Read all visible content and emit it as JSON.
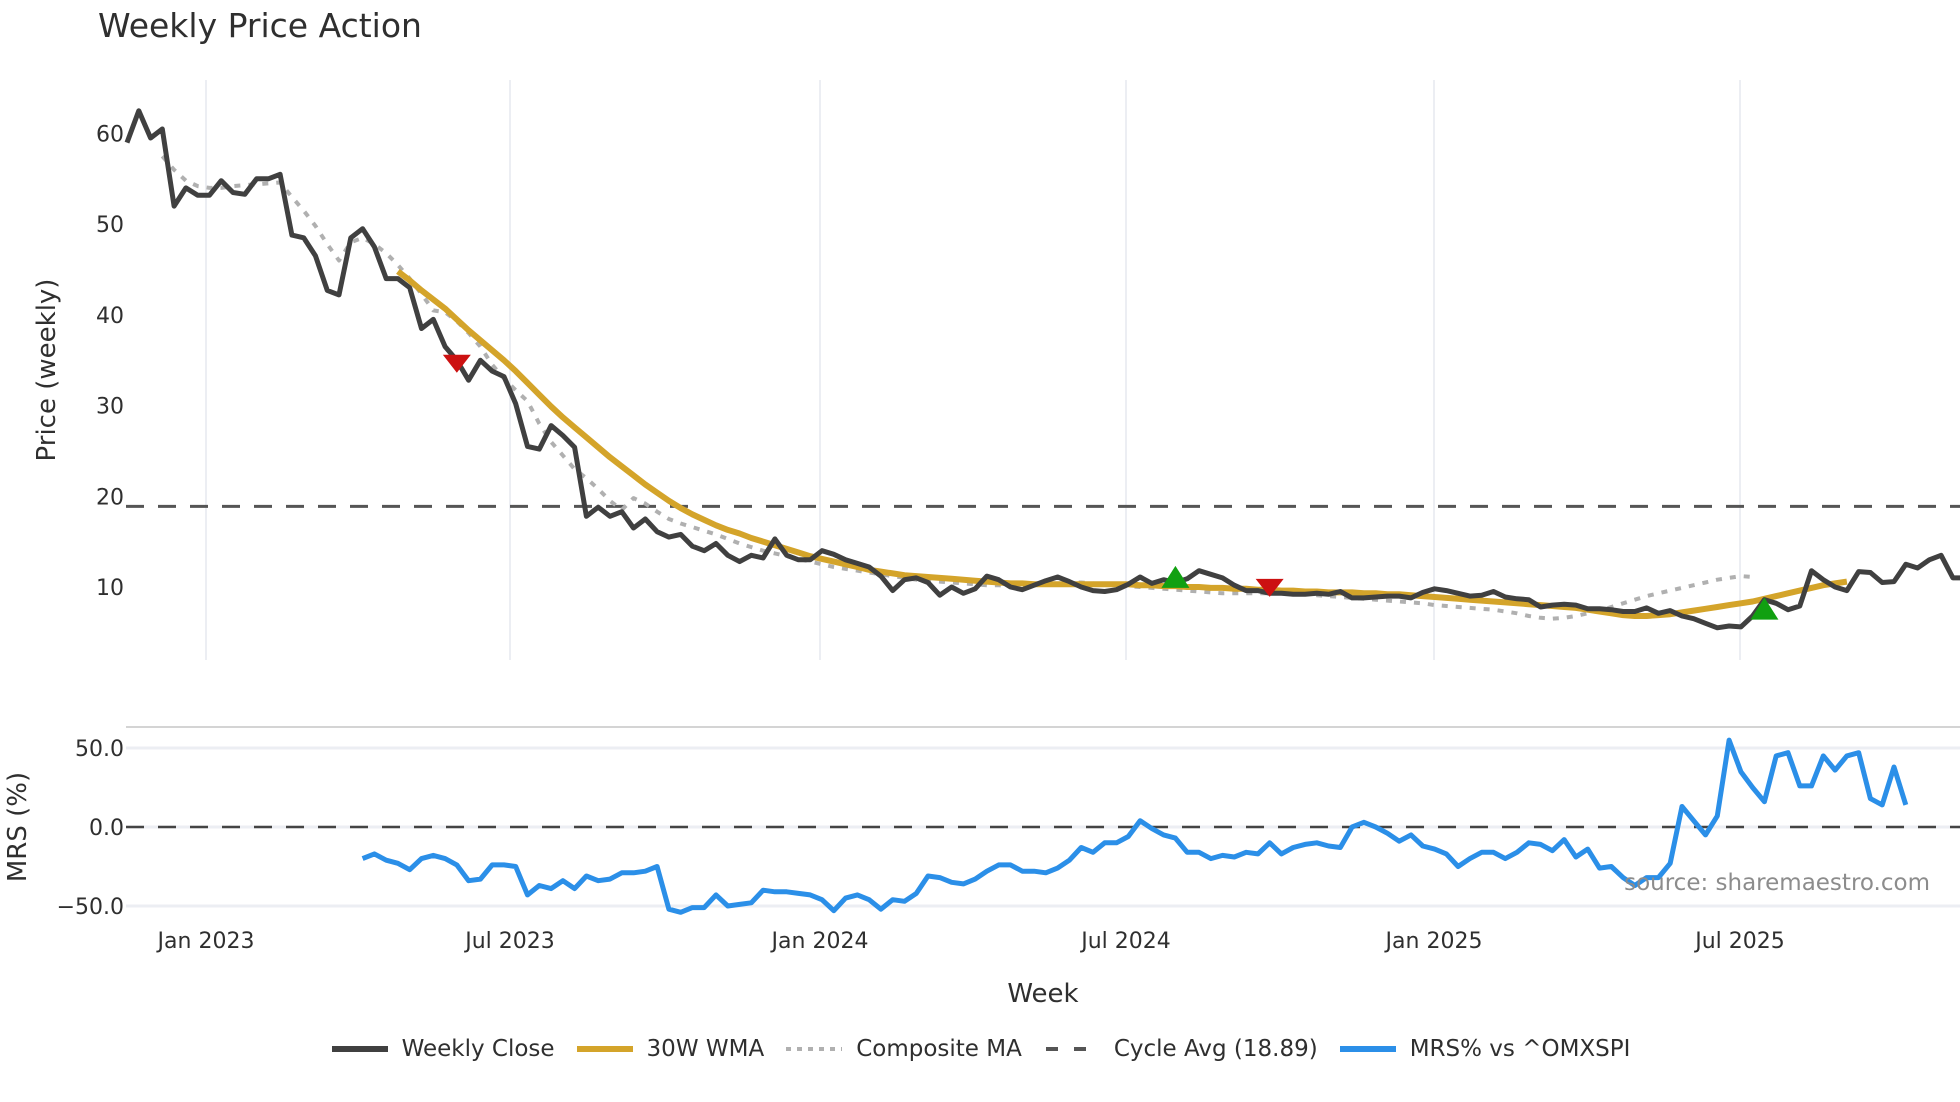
{
  "title": "Weekly Price Action",
  "watermark": "source: sharemaestro.com",
  "chart_data": [
    {
      "type": "line",
      "title": "Weekly Price Action",
      "xlabel": "Week",
      "ylabel": "Price (weekly)",
      "ylim": [
        0,
        64
      ],
      "yticks": [
        10,
        20,
        30,
        40,
        50,
        60
      ],
      "xticks": [
        "Jan 2023",
        "Jul 2023",
        "Jan 2024",
        "Jul 2024",
        "Jan 2025",
        "Jul 2025"
      ],
      "x_start_week": "2022-11-14",
      "grid": true,
      "series": [
        {
          "name": "Weekly Close",
          "color": "#404040",
          "values": [
            59,
            62.5,
            59.5,
            60.5,
            52,
            54,
            53.2,
            53.2,
            54.8,
            53.5,
            53.3,
            55,
            55,
            55.5,
            48.8,
            48.5,
            46.5,
            42.7,
            42.2,
            48.5,
            49.5,
            47.5,
            44,
            44,
            43,
            38.5,
            39.5,
            36.5,
            35,
            32.8,
            35,
            33.8,
            33.2,
            30.2,
            25.5,
            25.2,
            27.8,
            26.7,
            25.4,
            17.8,
            18.8,
            17.8,
            18.3,
            16.5,
            17.5,
            16.1,
            15.5,
            15.8,
            14.5,
            14,
            14.8,
            13.5,
            12.8,
            13.5,
            13.2,
            15.3,
            13.5,
            13,
            13,
            14,
            13.6,
            13,
            12.6,
            12.2,
            11.2,
            9.6,
            10.8,
            11,
            10.5,
            9.1,
            10,
            9.3,
            9.8,
            11.2,
            10.8,
            10,
            9.7,
            10.2,
            10.7,
            11.1,
            10.6,
            10,
            9.6,
            9.5,
            9.7,
            10.3,
            11.1,
            10.4,
            10.8,
            10.5,
            10.9,
            11.8,
            11.4,
            11,
            10.2,
            9.6,
            9.6,
            9.3,
            9.3,
            9.2,
            9.2,
            9.3,
            9.2,
            9.5,
            8.8,
            8.8,
            8.9,
            9,
            9,
            8.8,
            9.4,
            9.8,
            9.6,
            9.3,
            9,
            9.1,
            9.5,
            8.9,
            8.7,
            8.6,
            7.8,
            8,
            8.1,
            8,
            7.6,
            7.6,
            7.5,
            7.3,
            7.3,
            7.7,
            7.1,
            7.4,
            6.8,
            6.5,
            6,
            5.5,
            5.7,
            5.6,
            6.8,
            8.6,
            8.2,
            7.5,
            7.9,
            11.8,
            10.8,
            10,
            9.6,
            11.7,
            11.6,
            10.5,
            10.6,
            12.5,
            12.1,
            13,
            13.5,
            11,
            11,
            13.2,
            11
          ]
        },
        {
          "name": "30W WMA",
          "color": "#d4a42a",
          "start_index": 23,
          "values": [
            44.8,
            43.8,
            42.7,
            41.7,
            40.7,
            39.5,
            38.3,
            37.2,
            36.1,
            35,
            33.8,
            32.5,
            31.2,
            29.9,
            28.7,
            27.6,
            26.5,
            25.4,
            24.3,
            23.3,
            22.3,
            21.3,
            20.4,
            19.5,
            18.7,
            18,
            17.4,
            16.8,
            16.3,
            15.9,
            15.4,
            15,
            14.6,
            14.2,
            13.8,
            13.4,
            13.1,
            12.8,
            12.5,
            12.2,
            11.9,
            11.7,
            11.5,
            11.3,
            11.2,
            11.1,
            11,
            10.9,
            10.8,
            10.7,
            10.6,
            10.5,
            10.4,
            10.4,
            10.3,
            10.3,
            10.3,
            10.3,
            10.3,
            10.3,
            10.3,
            10.3,
            10.3,
            10.2,
            10.2,
            10.1,
            10.1,
            10,
            10,
            9.9,
            9.9,
            9.8,
            9.8,
            9.7,
            9.7,
            9.6,
            9.6,
            9.5,
            9.5,
            9.4,
            9.4,
            9.4,
            9.3,
            9.3,
            9.2,
            9.2,
            9.1,
            9,
            8.9,
            8.8,
            8.7,
            8.6,
            8.5,
            8.4,
            8.3,
            8.2,
            8.1,
            8,
            7.9,
            7.8,
            7.7,
            7.5,
            7.3,
            7.1,
            6.9,
            6.8,
            6.8,
            6.9,
            7,
            7.2,
            7.4,
            7.6,
            7.8,
            8,
            8.2,
            8.4,
            8.7,
            9,
            9.3,
            9.6,
            9.9,
            10.2,
            10.4,
            10.6
          ]
        },
        {
          "name": "Composite MA",
          "color": "#b0b0b0",
          "start_index": 3,
          "values": [
            57.5,
            56,
            54.8,
            54.2,
            54,
            54,
            54.2,
            54.3,
            54.4,
            54.5,
            54.6,
            53,
            51.5,
            49.8,
            47.8,
            46,
            48,
            48.5,
            47.8,
            46.8,
            45.5,
            44,
            42.3,
            40.5,
            40.3,
            39.3,
            38,
            36.5,
            34.5,
            33,
            31.7,
            30.5,
            28,
            26,
            24.5,
            23,
            22,
            20.8,
            19.5,
            18.5,
            19.8,
            19.2,
            18.3,
            17.5,
            17,
            16.6,
            16.2,
            15.8,
            15.3,
            14.8,
            14.4,
            14,
            13.7,
            13.4,
            13.1,
            12.8,
            12.5,
            12.2,
            12,
            11.8,
            11.6,
            11.4,
            11.2,
            11,
            10.8,
            10.7,
            10.6,
            10.5,
            10.4,
            10.3,
            10.2,
            10.2,
            10.1,
            10.1,
            10.2,
            10.3,
            10.4,
            10.5,
            10.5,
            10.4,
            10.3,
            10.2,
            10.1,
            10,
            9.9,
            9.8,
            9.7,
            9.6,
            9.5,
            9.4,
            9.3,
            9.3,
            9.3,
            9.3,
            9.3,
            9.3,
            9.2,
            9.2,
            9.1,
            9,
            8.9,
            8.8,
            8.7,
            8.6,
            8.5,
            8.4,
            8.3,
            8.2,
            8,
            7.9,
            7.8,
            7.7,
            7.6,
            7.5,
            7.3,
            7.1,
            6.8,
            6.6,
            6.5,
            6.6,
            6.8,
            7.1,
            7.4,
            7.8,
            8.2,
            8.6,
            9,
            9.3,
            9.6,
            9.9,
            10.2,
            10.5,
            10.8,
            11,
            11.2,
            11.1
          ]
        },
        {
          "name": "Cycle Avg (18.89)",
          "color": "#555555",
          "constant": 18.89
        }
      ],
      "markers": [
        {
          "type": "sell",
          "shape": "triangle-down",
          "color": "#cc1111",
          "index": 28,
          "value": 34.5
        },
        {
          "type": "buy",
          "shape": "triangle-up",
          "color": "#11a011",
          "index": 89,
          "value": 11.0
        },
        {
          "type": "sell",
          "shape": "triangle-down",
          "color": "#cc1111",
          "index": 97,
          "value": 9.8
        },
        {
          "type": "buy",
          "shape": "triangle-up",
          "color": "#11a011",
          "index": 139,
          "value": 7.5
        }
      ]
    },
    {
      "type": "line",
      "ylabel": "MRS (%)",
      "ylim": [
        -55,
        65
      ],
      "yticks": [
        -50.0,
        0.0,
        50.0
      ],
      "zero_line": true,
      "series": [
        {
          "name": "MRS% vs ^OMXSPI",
          "color": "#2b8fe8",
          "start_index": 20,
          "values": [
            -20,
            -17,
            -21,
            -23,
            -27,
            -20,
            -18,
            -20,
            -24,
            -34,
            -33,
            -24,
            -24,
            -25,
            -43,
            -37,
            -39,
            -34,
            -39,
            -31,
            -34,
            -33,
            -29,
            -29,
            -28,
            -25,
            -52,
            -54,
            -51,
            -51,
            -43,
            -50,
            -49,
            -48,
            -40,
            -41,
            -41,
            -42,
            -43,
            -46,
            -53,
            -45,
            -43,
            -46,
            -52,
            -46,
            -47,
            -42,
            -31,
            -32,
            -35,
            -36,
            -33,
            -28,
            -24,
            -24,
            -28,
            -28,
            -29,
            -26,
            -21,
            -13,
            -16,
            -10,
            -10,
            -6,
            4,
            -1,
            -5,
            -7,
            -16,
            -16,
            -20,
            -18,
            -19,
            -16,
            -17,
            -10,
            -17,
            -13,
            -11,
            -10,
            -12,
            -13,
            0,
            3,
            0,
            -4,
            -9,
            -5,
            -12,
            -14,
            -17,
            -25,
            -20,
            -16,
            -16,
            -20,
            -16,
            -10,
            -11,
            -15,
            -8,
            -19,
            -14,
            -26,
            -25,
            -32,
            -37,
            -32,
            -32,
            -23,
            13,
            4,
            -5,
            7,
            55,
            35,
            25,
            16,
            45,
            47,
            26,
            26,
            45,
            36,
            45,
            47,
            18,
            14,
            38,
            14
          ]
        }
      ]
    }
  ],
  "legend": [
    {
      "label": "Weekly Close",
      "style": "solid",
      "color": "#404040"
    },
    {
      "label": "30W WMA",
      "style": "solid",
      "color": "#d4a42a"
    },
    {
      "label": "Composite MA",
      "style": "dotted",
      "color": "#b0b0b0"
    },
    {
      "label": "Cycle Avg (18.89)",
      "style": "dashed",
      "color": "#555555"
    },
    {
      "label": "MRS% vs ^OMXSPI",
      "style": "solid",
      "color": "#2b8fe8"
    }
  ]
}
